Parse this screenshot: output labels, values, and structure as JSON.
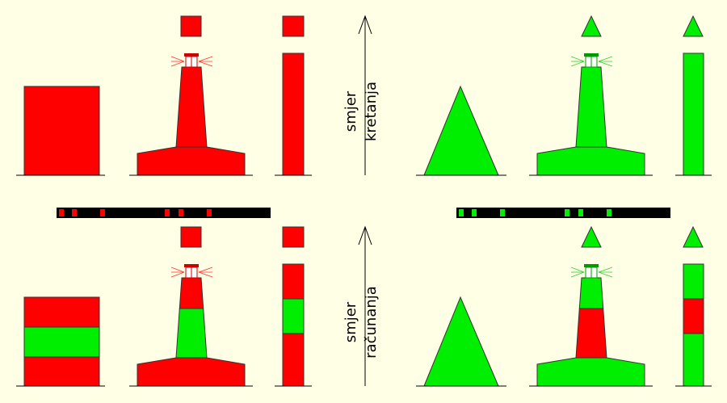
{
  "labels": {
    "top": [
      "smjer",
      "kretanja"
    ],
    "bottom": [
      "smjer",
      "računanja"
    ]
  }
}
